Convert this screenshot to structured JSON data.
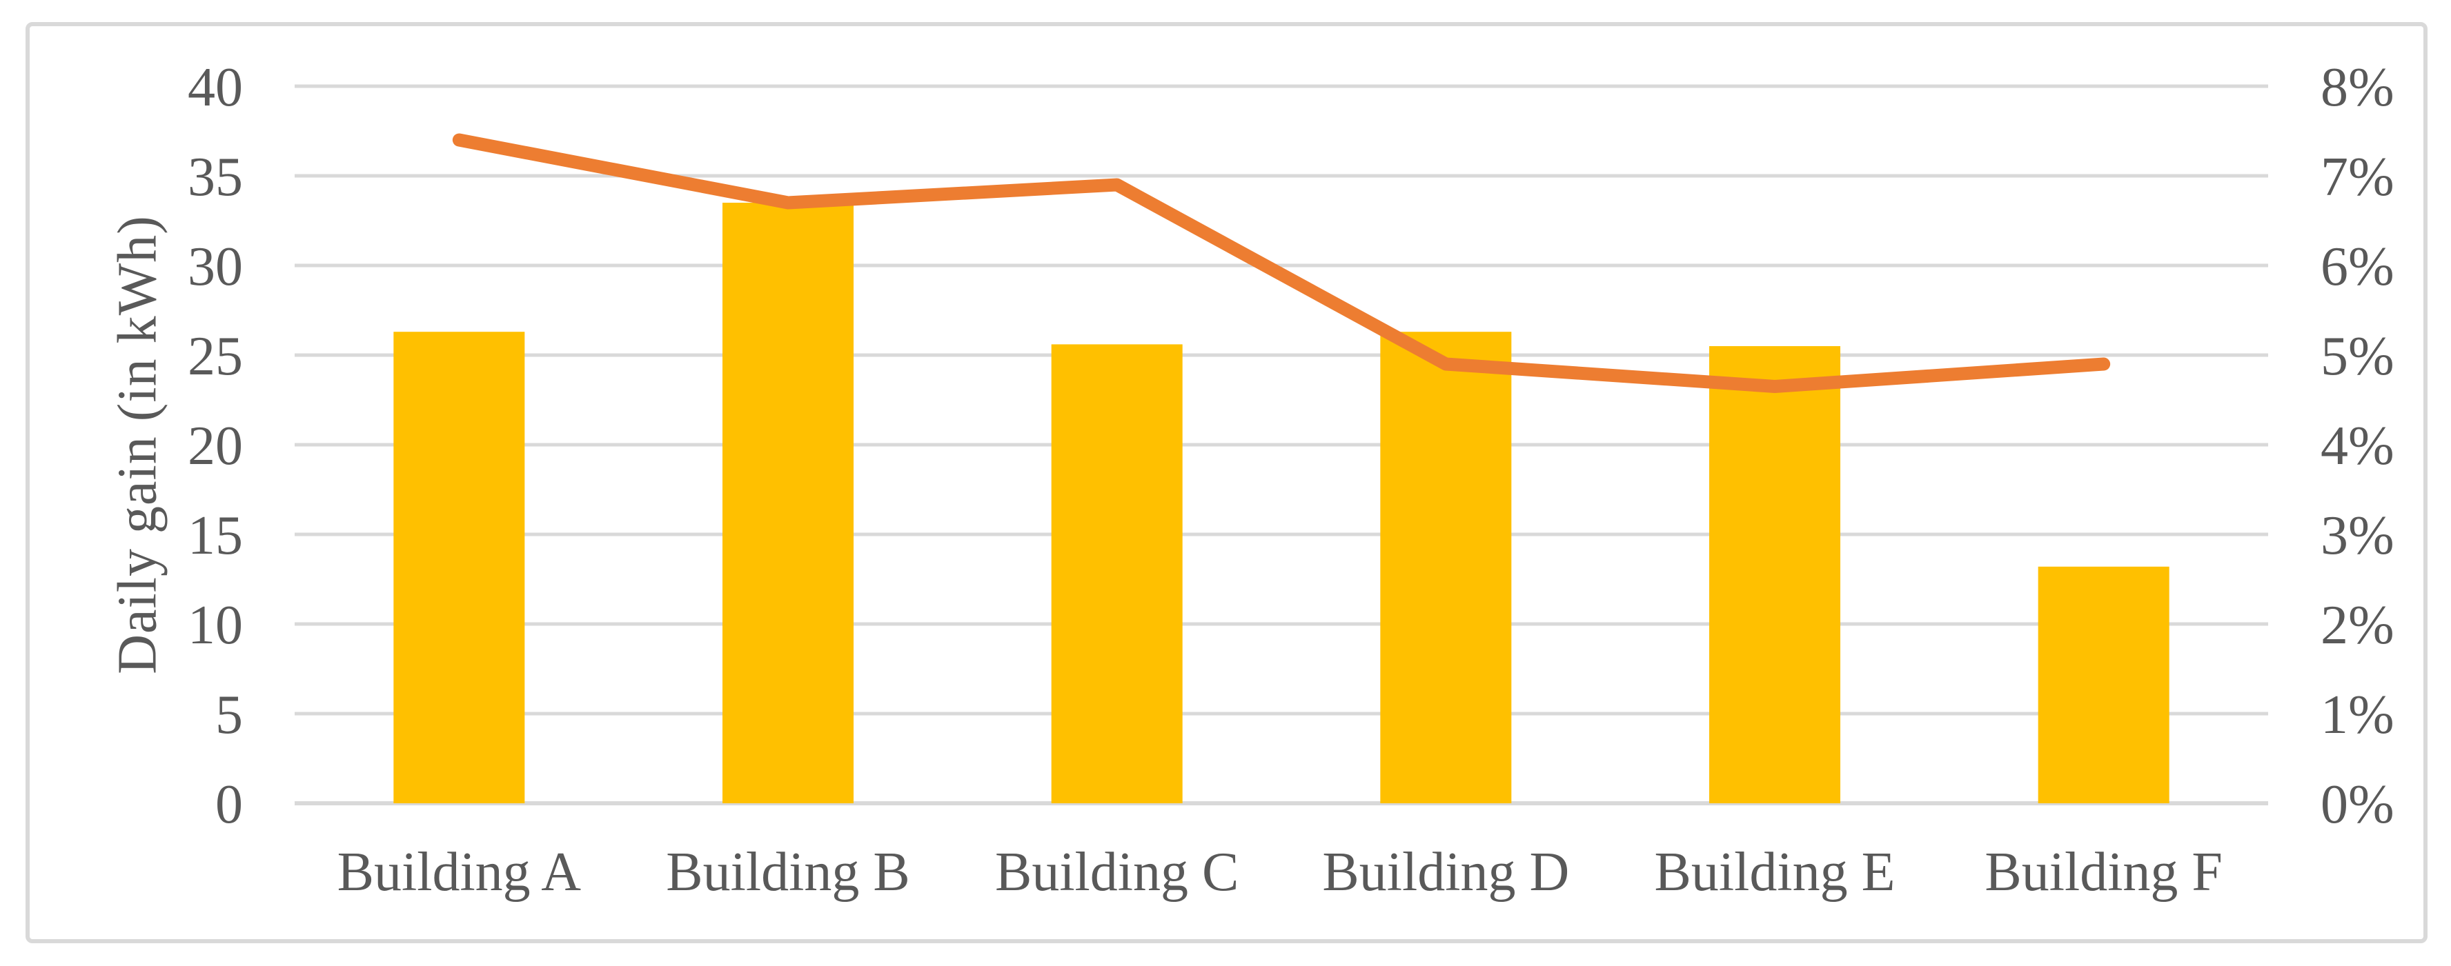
{
  "chart_data": {
    "type": "combo",
    "categories": [
      "Building A",
      "Building B",
      "Building C",
      "Building D",
      "Building E",
      "Building F"
    ],
    "series": [
      {
        "id": "daily-gain-bars",
        "type": "bar",
        "axis": "left",
        "values": [
          26.3,
          33.5,
          25.6,
          26.3,
          25.5,
          13.2
        ]
      },
      {
        "id": "percentage-line",
        "type": "line",
        "axis": "right",
        "values": [
          7.4,
          6.7,
          6.9,
          4.9,
          4.65,
          4.9
        ]
      }
    ],
    "left_axis": {
      "title": "Daily gain (in kWh)",
      "min": 0,
      "max": 40,
      "step": 5,
      "ticks": [
        "0",
        "5",
        "10",
        "15",
        "20",
        "25",
        "30",
        "35",
        "40"
      ]
    },
    "right_axis": {
      "min": 0,
      "max": 8,
      "step": 1,
      "ticks": [
        "0%",
        "1%",
        "2%",
        "3%",
        "4%",
        "5%",
        "6%",
        "7%",
        "8%"
      ]
    },
    "grid": true,
    "legend": "none",
    "colors": {
      "bar": "#FFC000",
      "line": "#ED7D31",
      "grid": "#D9D9D9",
      "border": "#D9D9D9",
      "text": "#595959",
      "background": "#FFFFFF"
    }
  }
}
